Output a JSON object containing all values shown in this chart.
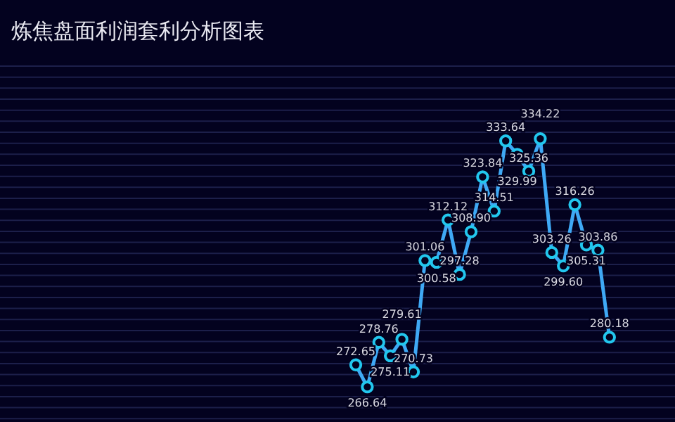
{
  "chart_data": {
    "type": "line",
    "title": "炼焦盘面利润套利分析图表",
    "categories": [
      null,
      null,
      null,
      null,
      null,
      null,
      null,
      null,
      null,
      null,
      null,
      null,
      null,
      null,
      null,
      null,
      null,
      null,
      null,
      null,
      null,
      null,
      null
    ],
    "series": [
      {
        "color": "#3fa9f5",
        "values": [
          272.65,
          266.64,
          278.76,
          275.11,
          279.61,
          270.73,
          301.06,
          300.58,
          312.12,
          297.28,
          308.9,
          323.84,
          314.51,
          333.64,
          329.99,
          325.36,
          334.22,
          303.26,
          299.6,
          316.26,
          305.31,
          303.86,
          280.18
        ],
        "value_labels": [
          "272.65",
          "266.64",
          "278.76",
          "275.11",
          "279.61",
          "270.73",
          "301.06",
          "300.58",
          "312.12",
          "297.28",
          "308.90",
          "323.84",
          "314.51",
          "333.64",
          "329.99",
          "325.36",
          "334.22",
          "303.26",
          "299.60",
          "316.26",
          "305.31",
          "303.86",
          "280.18"
        ]
      }
    ],
    "ylim": [
      258,
      354
    ],
    "yticks": [
      {
        "value": 258,
        "label": null
      },
      {
        "value": 261,
        "label": null
      },
      {
        "value": 264,
        "label": null
      },
      {
        "value": 267,
        "label": null
      },
      {
        "value": 270,
        "label": null
      },
      {
        "value": 273,
        "label": null
      },
      {
        "value": 276,
        "label": null
      },
      {
        "value": 279,
        "label": null
      },
      {
        "value": 282,
        "label": null
      },
      {
        "value": 285,
        "label": null
      },
      {
        "value": 288,
        "label": null
      },
      {
        "value": 291,
        "label": null
      },
      {
        "value": 294,
        "label": null
      },
      {
        "value": 297,
        "label": null
      },
      {
        "value": 300,
        "label": null
      },
      {
        "value": 303,
        "label": null
      },
      {
        "value": 306,
        "label": null
      },
      {
        "value": 309,
        "label": null
      },
      {
        "value": 312,
        "label": null
      },
      {
        "value": 315,
        "label": null
      },
      {
        "value": 318,
        "label": null
      },
      {
        "value": 321,
        "label": null
      },
      {
        "value": 324,
        "label": null
      },
      {
        "value": 327,
        "label": null
      },
      {
        "value": 330,
        "label": null
      },
      {
        "value": 333,
        "label": null
      },
      {
        "value": 336,
        "label": null
      },
      {
        "value": 339,
        "label": null
      },
      {
        "value": 342,
        "label": null
      },
      {
        "value": 345,
        "label": null
      },
      {
        "value": 348,
        "label": null
      },
      {
        "value": 351,
        "label": null
      },
      {
        "value": 354,
        "label": null
      }
    ],
    "grid": "y",
    "marker": "circle"
  }
}
